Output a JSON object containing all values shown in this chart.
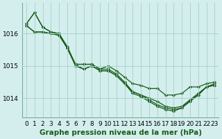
{
  "title": "Graphe pression niveau de la mer (hPa)",
  "background_color": "#d4eeed",
  "grid_color": "#a8d4d0",
  "line_color": "#1a5c1a",
  "series": [
    [
      1016.3,
      1016.65,
      1016.2,
      1016.05,
      1016.0,
      1015.6,
      1015.05,
      1015.05,
      1015.05,
      1014.9,
      1015.0,
      1014.85,
      1014.65,
      1014.45,
      1014.4,
      1014.3,
      1014.3,
      1014.1,
      1014.1,
      1014.15,
      1014.35,
      1014.35,
      1014.45,
      1014.5
    ],
    [
      1016.3,
      1016.65,
      1016.2,
      1016.05,
      1016.0,
      1015.55,
      1015.05,
      1015.05,
      1015.05,
      1014.9,
      1014.9,
      1014.75,
      1014.5,
      1014.2,
      1014.1,
      1014.0,
      1013.9,
      1013.75,
      1013.7,
      1013.75,
      1013.95,
      1014.15,
      1014.35,
      1014.45
    ],
    [
      1016.25,
      1016.05,
      1016.05,
      1016.0,
      1015.95,
      1015.55,
      1015.0,
      1014.9,
      1015.0,
      1014.85,
      1014.85,
      1014.7,
      1014.45,
      1014.2,
      1014.1,
      1013.95,
      1013.8,
      1013.7,
      1013.65,
      1013.7,
      1013.95,
      1014.1,
      1014.35,
      1014.4
    ],
    [
      1016.25,
      1016.05,
      1016.05,
      1016.0,
      1015.95,
      1015.55,
      1015.05,
      1014.9,
      1015.0,
      1014.85,
      1014.85,
      1014.7,
      1014.45,
      1014.15,
      1014.05,
      1013.9,
      1013.75,
      1013.65,
      1013.6,
      1013.7,
      1013.9,
      1014.1,
      1014.35,
      1014.4
    ]
  ],
  "xlim": [
    -0.5,
    23.5
  ],
  "ylim": [
    1013.4,
    1016.95
  ],
  "yticks": [
    1014,
    1015,
    1016
  ],
  "xticks": [
    0,
    1,
    2,
    3,
    4,
    5,
    6,
    7,
    8,
    9,
    10,
    11,
    12,
    13,
    14,
    15,
    16,
    17,
    18,
    19,
    20,
    21,
    22,
    23
  ],
  "tick_fontsize": 6.5,
  "title_fontsize": 7.5,
  "marker": "D",
  "markersize": 2.0,
  "linewidth": 0.9
}
